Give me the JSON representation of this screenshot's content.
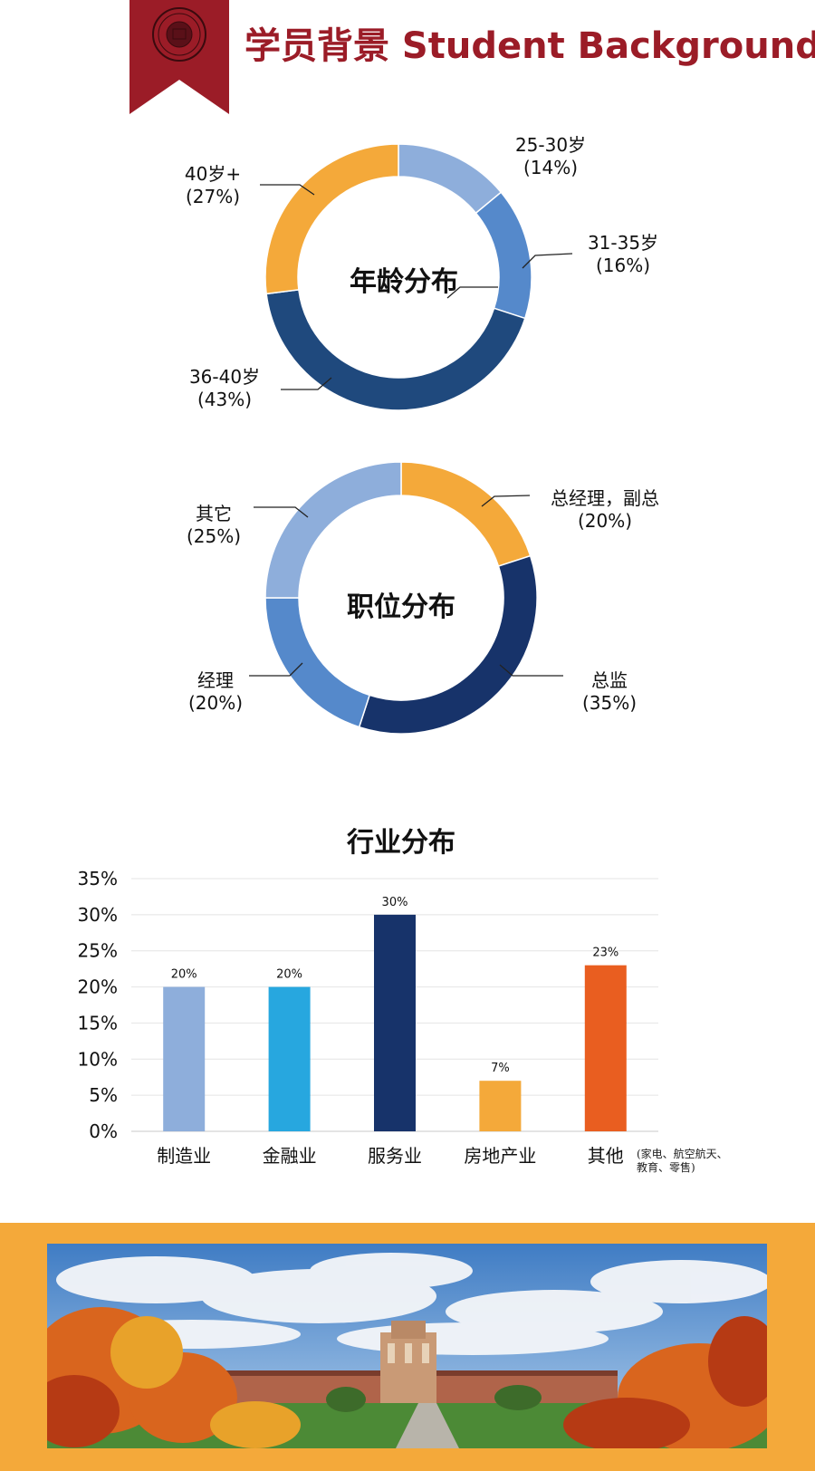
{
  "header": {
    "title": "学员背景 Student Background",
    "seal_text": "THE UNIVERSITY OF TENNESSEE"
  },
  "colors": {
    "brand_red": "#9b1c27",
    "orange": "#f4a93a",
    "light_blue": "#8eaedb",
    "mid_blue": "#5589cb",
    "dark_blue": "#1f497d",
    "navy": "#17336a",
    "cyan": "#27a7df",
    "red_orange": "#e95e20"
  },
  "chart_data": [
    {
      "type": "pie",
      "title": "年龄分布",
      "slices": [
        {
          "label": "25-30岁",
          "pct_text": "(14%)",
          "value": 14,
          "color": "#8eaedb"
        },
        {
          "label": "31-35岁",
          "pct_text": "(16%)",
          "value": 16,
          "color": "#5589cb"
        },
        {
          "label": "36-40岁",
          "pct_text": "(43%)",
          "value": 43,
          "color": "#1f497d"
        },
        {
          "label": "40岁+",
          "pct_text": "(27%)",
          "value": 27,
          "color": "#f4a93a"
        }
      ]
    },
    {
      "type": "pie",
      "title": "职位分布",
      "slices": [
        {
          "label": "总经理，副总",
          "pct_text": "(20%)",
          "value": 20,
          "color": "#f4a93a"
        },
        {
          "label": "总监",
          "pct_text": "(35%)",
          "value": 35,
          "color": "#17336a"
        },
        {
          "label": "经理",
          "pct_text": "(20%)",
          "value": 20,
          "color": "#5589cb"
        },
        {
          "label": "其它",
          "pct_text": "(25%)",
          "value": 25,
          "color": "#8eaedb"
        }
      ]
    },
    {
      "type": "bar",
      "title": "行业分布",
      "categories": [
        "制造业",
        "金融业",
        "服务业",
        "房地产业",
        "其他"
      ],
      "values": [
        20,
        20,
        30,
        7,
        23
      ],
      "value_labels": [
        "20%",
        "20%",
        "30%",
        "7%",
        "23%"
      ],
      "colors": [
        "#8eaedb",
        "#27a7df",
        "#17336a",
        "#f4a93a",
        "#e95e20"
      ],
      "category_note": [
        "(家电、航空航天、",
        "教育、零售)"
      ],
      "ylim": [
        0,
        35
      ],
      "yticks": [
        "0%",
        "5%",
        "10%",
        "15%",
        "20%",
        "25%",
        "30%",
        "35%"
      ],
      "grid": true
    }
  ]
}
